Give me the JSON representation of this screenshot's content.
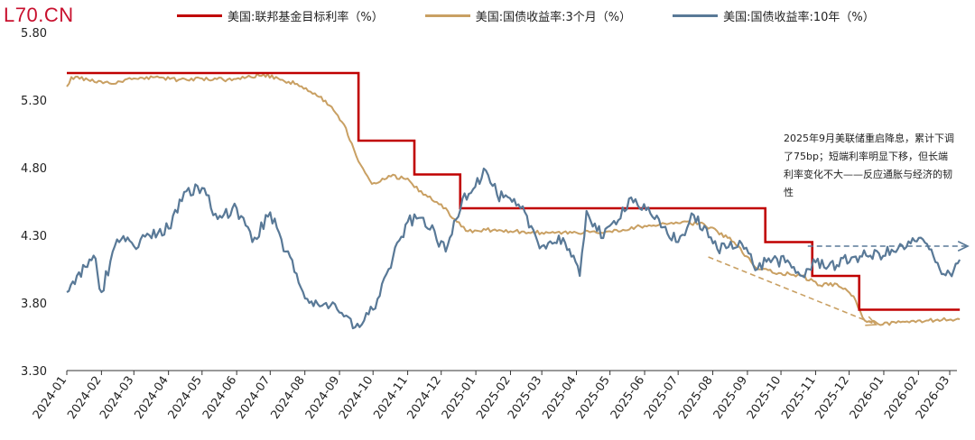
{
  "watermark": "L70.CN",
  "annotation": "2025年9月美联储重启降息，累计下调了75bp；短端利率明显下移，但长端利率变化不大——反应通胀与经济的韧性",
  "chart_data": {
    "type": "line",
    "ylim": [
      3.3,
      5.8
    ],
    "yticks": [
      "5.80",
      "5.30",
      "4.80",
      "4.30",
      "3.80",
      "3.30"
    ],
    "x_range": [
      "2024-01",
      "2026-03"
    ],
    "x_ticks": [
      "2024-01",
      "2024-02",
      "2024-03",
      "2024-04",
      "2024-05",
      "2024-06",
      "2024-07",
      "2024-08",
      "2024-09",
      "2024-10",
      "2024-11",
      "2024-12",
      "2025-01",
      "2025-02",
      "2025-03",
      "2025-04",
      "2025-05",
      "2025-06",
      "2025-07",
      "2025-08",
      "2025-09",
      "2025-10",
      "2025-11",
      "2025-12",
      "2026-01",
      "2026-02",
      "2026-03"
    ],
    "series": [
      {
        "name": "美国:联邦基金目标利率（%）",
        "color": "#c00000",
        "step": true,
        "points": [
          [
            "2024-01-01",
            5.5
          ],
          [
            "2024-09-18",
            5.0
          ],
          [
            "2024-11-07",
            4.75
          ],
          [
            "2024-12-18",
            4.5
          ],
          [
            "2025-09-17",
            4.25
          ],
          [
            "2025-10-29",
            4.0
          ],
          [
            "2025-12-10",
            3.75
          ],
          [
            "2026-03-10",
            3.75
          ]
        ]
      },
      {
        "name": "美国:国债收益率:3个月（%）",
        "color": "#c9a063",
        "points": [
          [
            "2024-01-01",
            5.4
          ],
          [
            "2024-01-05",
            5.47
          ],
          [
            "2024-01-20",
            5.45
          ],
          [
            "2024-02-10",
            5.42
          ],
          [
            "2024-03-01",
            5.46
          ],
          [
            "2024-03-20",
            5.47
          ],
          [
            "2024-04-10",
            5.45
          ],
          [
            "2024-05-01",
            5.46
          ],
          [
            "2024-05-20",
            5.45
          ],
          [
            "2024-06-10",
            5.47
          ],
          [
            "2024-06-25",
            5.49
          ],
          [
            "2024-07-10",
            5.45
          ],
          [
            "2024-07-25",
            5.42
          ],
          [
            "2024-08-10",
            5.35
          ],
          [
            "2024-08-25",
            5.25
          ],
          [
            "2024-09-05",
            5.12
          ],
          [
            "2024-09-12",
            4.98
          ],
          [
            "2024-09-20",
            4.82
          ],
          [
            "2024-09-30",
            4.68
          ],
          [
            "2024-10-15",
            4.74
          ],
          [
            "2024-11-01",
            4.72
          ],
          [
            "2024-11-15",
            4.6
          ],
          [
            "2024-12-01",
            4.53
          ],
          [
            "2024-12-15",
            4.4
          ],
          [
            "2024-12-25",
            4.33
          ],
          [
            "2025-01-10",
            4.34
          ],
          [
            "2025-02-01",
            4.33
          ],
          [
            "2025-03-01",
            4.32
          ],
          [
            "2025-04-01",
            4.32
          ],
          [
            "2025-05-01",
            4.33
          ],
          [
            "2025-06-01",
            4.37
          ],
          [
            "2025-07-01",
            4.39
          ],
          [
            "2025-07-20",
            4.39
          ],
          [
            "2025-08-05",
            4.33
          ],
          [
            "2025-08-20",
            4.25
          ],
          [
            "2025-09-10",
            4.05
          ],
          [
            "2025-10-01",
            4.02
          ],
          [
            "2025-10-20",
            4.0
          ],
          [
            "2025-11-05",
            3.93
          ],
          [
            "2025-11-20",
            3.94
          ],
          [
            "2025-12-05",
            3.85
          ],
          [
            "2025-12-15",
            3.67
          ],
          [
            "2025-12-31",
            3.64
          ],
          [
            "2026-01-20",
            3.66
          ],
          [
            "2026-02-10",
            3.67
          ],
          [
            "2026-03-10",
            3.68
          ]
        ]
      },
      {
        "name": "美国:国债收益率:10年（%）",
        "color": "#597997",
        "points": [
          [
            "2024-01-01",
            3.88
          ],
          [
            "2024-01-10",
            4.0
          ],
          [
            "2024-01-25",
            4.15
          ],
          [
            "2024-02-01",
            3.88
          ],
          [
            "2024-02-15",
            4.27
          ],
          [
            "2024-03-01",
            4.22
          ],
          [
            "2024-03-15",
            4.3
          ],
          [
            "2024-04-01",
            4.35
          ],
          [
            "2024-04-15",
            4.62
          ],
          [
            "2024-05-01",
            4.65
          ],
          [
            "2024-05-15",
            4.42
          ],
          [
            "2024-06-01",
            4.5
          ],
          [
            "2024-06-15",
            4.25
          ],
          [
            "2024-07-01",
            4.47
          ],
          [
            "2024-07-15",
            4.18
          ],
          [
            "2024-08-05",
            3.8
          ],
          [
            "2024-08-20",
            3.8
          ],
          [
            "2024-09-05",
            3.7
          ],
          [
            "2024-09-15",
            3.62
          ],
          [
            "2024-10-01",
            3.75
          ],
          [
            "2024-10-15",
            4.05
          ],
          [
            "2024-11-01",
            4.4
          ],
          [
            "2024-11-15",
            4.43
          ],
          [
            "2024-12-05",
            4.18
          ],
          [
            "2024-12-20",
            4.57
          ],
          [
            "2025-01-10",
            4.78
          ],
          [
            "2025-01-20",
            4.6
          ],
          [
            "2025-02-10",
            4.5
          ],
          [
            "2025-03-01",
            4.22
          ],
          [
            "2025-03-20",
            4.28
          ],
          [
            "2025-04-04",
            4.0
          ],
          [
            "2025-04-10",
            4.48
          ],
          [
            "2025-04-25",
            4.28
          ],
          [
            "2025-05-20",
            4.58
          ],
          [
            "2025-06-10",
            4.42
          ],
          [
            "2025-07-01",
            4.25
          ],
          [
            "2025-07-15",
            4.45
          ],
          [
            "2025-08-05",
            4.2
          ],
          [
            "2025-08-25",
            4.26
          ],
          [
            "2025-09-10",
            4.05
          ],
          [
            "2025-09-20",
            4.13
          ],
          [
            "2025-10-05",
            4.1
          ],
          [
            "2025-10-20",
            4.0
          ],
          [
            "2025-11-01",
            4.1
          ],
          [
            "2025-11-20",
            4.08
          ],
          [
            "2025-12-05",
            4.14
          ],
          [
            "2025-12-20",
            4.15
          ],
          [
            "2026-01-10",
            4.18
          ],
          [
            "2026-01-25",
            4.24
          ],
          [
            "2026-02-05",
            4.27
          ],
          [
            "2026-02-20",
            4.05
          ],
          [
            "2026-03-01",
            4.02
          ],
          [
            "2026-03-10",
            4.12
          ]
        ]
      }
    ],
    "trend_arrows": [
      {
        "color": "#c9a063",
        "from": [
          "2025-07-28",
          4.14
        ],
        "to": [
          "2025-12-25",
          3.64
        ]
      },
      {
        "color": "#597997",
        "from": [
          "2025-10-25",
          4.22
        ],
        "to": [
          "2026-03-31",
          4.22
        ]
      }
    ]
  }
}
